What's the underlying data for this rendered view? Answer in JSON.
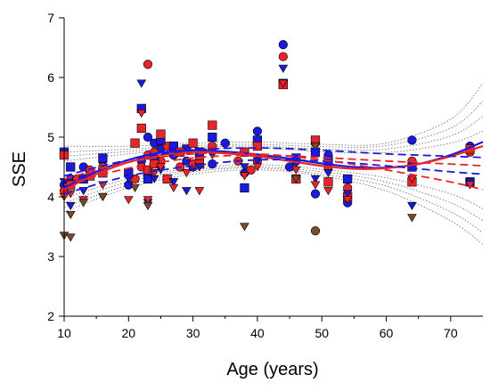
{
  "chart_data": {
    "type": "scatter",
    "title": "",
    "xlabel": "Age (years)",
    "ylabel": "SSE",
    "xlim": [
      10,
      75
    ],
    "ylim": [
      2,
      7
    ],
    "xticks": [
      10,
      20,
      30,
      40,
      50,
      60,
      70
    ],
    "yticks": [
      2,
      3,
      4,
      5,
      6,
      7
    ],
    "grid": false,
    "legend": "none",
    "colors": {
      "blue": "#1a1adf",
      "red": "#e8232a",
      "brown": "#7a4a2a",
      "ci": "#666666"
    },
    "series": [
      {
        "marker": "circle",
        "color": "#1a1adf",
        "points": [
          [
            10,
            4.2
          ],
          [
            11,
            4.3
          ],
          [
            13,
            4.5
          ],
          [
            16,
            4.6
          ],
          [
            20,
            4.2
          ],
          [
            22,
            4.6
          ],
          [
            23,
            4.4
          ],
          [
            23,
            5.0
          ],
          [
            24,
            4.9
          ],
          [
            25,
            4.8
          ],
          [
            27,
            4.7
          ],
          [
            29,
            4.6
          ],
          [
            30,
            4.5
          ],
          [
            31,
            4.6
          ],
          [
            33,
            4.55
          ],
          [
            35,
            4.9
          ],
          [
            38,
            4.4
          ],
          [
            40,
            5.1
          ],
          [
            44,
            6.55
          ],
          [
            45,
            4.5
          ],
          [
            49,
            4.05
          ],
          [
            51,
            4.7
          ],
          [
            54,
            3.9
          ],
          [
            64,
            4.95
          ],
          [
            73,
            4.85
          ]
        ]
      },
      {
        "marker": "circle",
        "color": "#e8232a",
        "points": [
          [
            10,
            4.1
          ],
          [
            12,
            4.3
          ],
          [
            14,
            4.45
          ],
          [
            16,
            4.5
          ],
          [
            21,
            4.3
          ],
          [
            22,
            4.5
          ],
          [
            23,
            6.22
          ],
          [
            23,
            4.7
          ],
          [
            24,
            4.75
          ],
          [
            25,
            4.6
          ],
          [
            26,
            4.85
          ],
          [
            28,
            4.5
          ],
          [
            30,
            4.55
          ],
          [
            31,
            4.65
          ],
          [
            33,
            4.85
          ],
          [
            37,
            4.6
          ],
          [
            39,
            4.45
          ],
          [
            40,
            4.6
          ],
          [
            44,
            6.35
          ],
          [
            46,
            4.6
          ],
          [
            49,
            4.9
          ],
          [
            51,
            4.5
          ],
          [
            54,
            4.15
          ],
          [
            64,
            4.6
          ],
          [
            73,
            4.75
          ]
        ]
      },
      {
        "marker": "square",
        "color": "#1a1adf",
        "points": [
          [
            10,
            4.75
          ],
          [
            11,
            4.5
          ],
          [
            13,
            4.3
          ],
          [
            16,
            4.65
          ],
          [
            20,
            4.4
          ],
          [
            22,
            5.48
          ],
          [
            23,
            4.3
          ],
          [
            24,
            4.6
          ],
          [
            25,
            4.95
          ],
          [
            27,
            4.85
          ],
          [
            29,
            4.8
          ],
          [
            31,
            4.75
          ],
          [
            33,
            5.0
          ],
          [
            38,
            4.15
          ],
          [
            40,
            4.95
          ],
          [
            44,
            5.9
          ],
          [
            46,
            4.65
          ],
          [
            49,
            4.75
          ],
          [
            51,
            4.6
          ],
          [
            54,
            4.3
          ],
          [
            64,
            4.5
          ],
          [
            73,
            4.25
          ]
        ]
      },
      {
        "marker": "square",
        "color": "#e8232a",
        "points": [
          [
            10,
            4.7
          ],
          [
            11,
            4.2
          ],
          [
            14,
            4.35
          ],
          [
            16,
            4.4
          ],
          [
            21,
            4.9
          ],
          [
            22,
            5.15
          ],
          [
            23,
            4.45
          ],
          [
            24,
            4.55
          ],
          [
            25,
            5.05
          ],
          [
            26,
            4.3
          ],
          [
            28,
            4.75
          ],
          [
            30,
            4.9
          ],
          [
            31,
            4.55
          ],
          [
            33,
            5.2
          ],
          [
            38,
            4.75
          ],
          [
            40,
            4.85
          ],
          [
            44,
            5.88
          ],
          [
            46,
            4.3
          ],
          [
            49,
            4.95
          ],
          [
            51,
            4.25
          ],
          [
            54,
            4.0
          ],
          [
            64,
            4.25
          ],
          [
            73,
            4.8
          ]
        ]
      },
      {
        "marker": "triangle-down",
        "color": "#1a1adf",
        "points": [
          [
            10,
            4.25
          ],
          [
            11,
            3.85
          ],
          [
            13,
            4.1
          ],
          [
            16,
            4.0
          ],
          [
            20,
            4.3
          ],
          [
            22,
            5.9
          ],
          [
            23,
            3.9
          ],
          [
            24,
            4.3
          ],
          [
            25,
            4.45
          ],
          [
            27,
            4.25
          ],
          [
            29,
            4.1
          ],
          [
            31,
            4.5
          ],
          [
            33,
            4.7
          ],
          [
            38,
            4.5
          ],
          [
            40,
            4.6
          ],
          [
            44,
            6.15
          ],
          [
            46,
            4.55
          ],
          [
            49,
            4.3
          ],
          [
            51,
            4.4
          ],
          [
            54,
            4.05
          ],
          [
            64,
            3.85
          ],
          [
            73,
            4.25
          ]
        ]
      },
      {
        "marker": "triangle-down",
        "color": "#e8232a",
        "points": [
          [
            10,
            4.0
          ],
          [
            11,
            4.05
          ],
          [
            13,
            3.95
          ],
          [
            16,
            4.2
          ],
          [
            20,
            3.95
          ],
          [
            22,
            5.4
          ],
          [
            23,
            3.95
          ],
          [
            24,
            4.4
          ],
          [
            25,
            4.5
          ],
          [
            27,
            4.15
          ],
          [
            29,
            4.4
          ],
          [
            31,
            4.1
          ],
          [
            33,
            4.75
          ],
          [
            38,
            4.35
          ],
          [
            40,
            4.5
          ],
          [
            44,
            5.9
          ],
          [
            46,
            4.45
          ],
          [
            49,
            4.2
          ],
          [
            51,
            4.1
          ],
          [
            54,
            3.95
          ],
          [
            64,
            4.3
          ],
          [
            73,
            4.2
          ]
        ]
      },
      {
        "marker": "triangle-down",
        "color": "#7a4a2a",
        "points": [
          [
            10,
            3.35
          ],
          [
            11,
            3.7
          ],
          [
            11,
            3.32
          ],
          [
            13,
            3.9
          ],
          [
            16,
            4.0
          ],
          [
            21,
            4.15
          ],
          [
            23,
            3.85
          ],
          [
            38,
            3.5
          ],
          [
            46,
            4.3
          ],
          [
            49,
            4.85
          ],
          [
            64,
            3.65
          ]
        ]
      },
      {
        "marker": "circle",
        "color": "#7a4a2a",
        "points": [
          [
            49,
            3.43
          ]
        ]
      }
    ],
    "fits": [
      {
        "style": "solid",
        "color": "#1a1adf",
        "x": [
          10,
          15,
          20,
          25,
          30,
          35,
          40,
          45,
          50,
          55,
          60,
          65,
          70,
          75
        ],
        "y": [
          4.15,
          4.42,
          4.62,
          4.74,
          4.78,
          4.76,
          4.71,
          4.64,
          4.56,
          4.5,
          4.49,
          4.55,
          4.7,
          4.92
        ]
      },
      {
        "style": "solid",
        "color": "#e8232a",
        "x": [
          10,
          15,
          20,
          25,
          30,
          35,
          40,
          45,
          50,
          55,
          60,
          65,
          70,
          75
        ],
        "y": [
          4.12,
          4.38,
          4.58,
          4.7,
          4.75,
          4.73,
          4.68,
          4.6,
          4.52,
          4.47,
          4.48,
          4.55,
          4.68,
          4.85
        ]
      },
      {
        "style": "dashed",
        "color": "#1a1adf",
        "x": [
          10,
          20,
          30,
          40,
          50,
          60,
          70,
          75
        ],
        "y": [
          4.35,
          4.62,
          4.78,
          4.82,
          4.78,
          4.72,
          4.68,
          4.66
        ]
      },
      {
        "style": "dashed",
        "color": "#1a1adf",
        "x": [
          10,
          20,
          30,
          40,
          50,
          60,
          70,
          75
        ],
        "y": [
          4.05,
          4.35,
          4.52,
          4.62,
          4.6,
          4.52,
          4.42,
          4.38
        ]
      },
      {
        "style": "dashed",
        "color": "#e8232a",
        "x": [
          10,
          20,
          30,
          40,
          50,
          60,
          70,
          75
        ],
        "y": [
          4.3,
          4.58,
          4.72,
          4.72,
          4.62,
          4.45,
          4.25,
          4.12
        ]
      },
      {
        "style": "dashed",
        "color": "#e8232a",
        "x": [
          10,
          20,
          30,
          40,
          50,
          60,
          70,
          75
        ],
        "y": [
          4.2,
          4.48,
          4.65,
          4.7,
          4.66,
          4.6,
          4.55,
          4.52
        ]
      }
    ],
    "ci_bands": [
      {
        "x": [
          10,
          20,
          30,
          40,
          50,
          60,
          70,
          75
        ],
        "y": [
          4.85,
          4.85,
          4.9,
          4.92,
          4.88,
          4.9,
          5.3,
          5.9
        ]
      },
      {
        "x": [
          10,
          20,
          30,
          40,
          50,
          60,
          70,
          75
        ],
        "y": [
          4.75,
          4.8,
          4.86,
          4.88,
          4.84,
          4.86,
          5.15,
          5.6
        ]
      },
      {
        "x": [
          10,
          20,
          30,
          40,
          50,
          60,
          70,
          75
        ],
        "y": [
          4.68,
          4.76,
          4.83,
          4.85,
          4.8,
          4.8,
          5.02,
          5.35
        ]
      },
      {
        "x": [
          10,
          20,
          30,
          40,
          50,
          60,
          70,
          75
        ],
        "y": [
          4.6,
          4.72,
          4.8,
          4.82,
          4.76,
          4.74,
          4.9,
          5.1
        ]
      },
      {
        "x": [
          10,
          20,
          30,
          40,
          50,
          60,
          70,
          75
        ],
        "y": [
          3.75,
          4.15,
          4.38,
          4.45,
          4.35,
          4.1,
          3.6,
          3.2
        ]
      },
      {
        "x": [
          10,
          20,
          30,
          40,
          50,
          60,
          70,
          75
        ],
        "y": [
          3.82,
          4.2,
          4.42,
          4.48,
          4.38,
          4.18,
          3.75,
          3.4
        ]
      },
      {
        "x": [
          10,
          20,
          30,
          40,
          50,
          60,
          70,
          75
        ],
        "y": [
          3.9,
          4.25,
          4.45,
          4.5,
          4.42,
          4.25,
          3.9,
          3.6
        ]
      },
      {
        "x": [
          10,
          20,
          30,
          40,
          50,
          60,
          70,
          75
        ],
        "y": [
          3.98,
          4.3,
          4.48,
          4.54,
          4.46,
          4.32,
          4.05,
          3.8
        ]
      }
    ]
  }
}
